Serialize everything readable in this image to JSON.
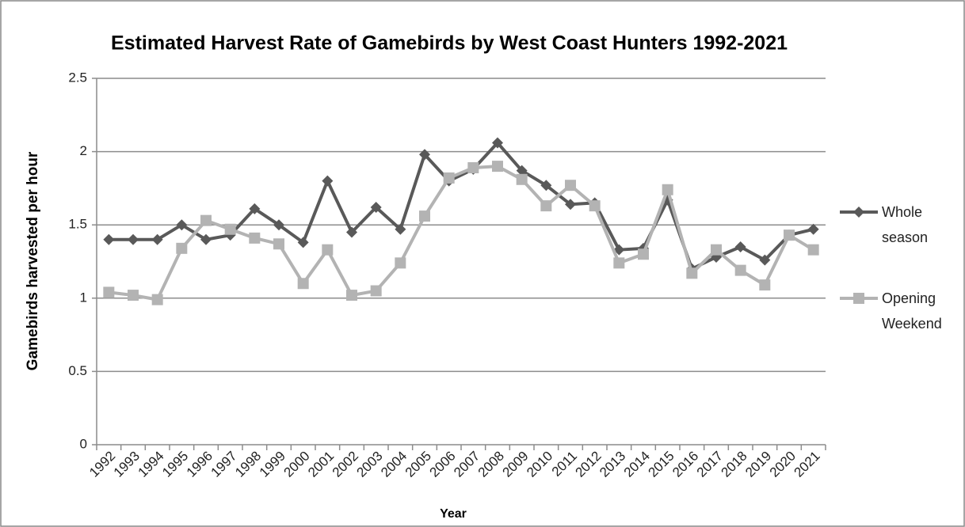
{
  "chart_data": {
    "type": "line",
    "title": "Estimated Harvest Rate of Gamebirds by West Coast Hunters 1992-2021",
    "x_label": "Year",
    "y_label": "Gamebirds harvested per hour",
    "categories": [
      "1992",
      "1993",
      "1994",
      "1995",
      "1996",
      "1997",
      "1998",
      "1999",
      "2000",
      "2001",
      "2002",
      "2003",
      "2004",
      "2005",
      "2006",
      "2007",
      "2008",
      "2009",
      "2010",
      "2011",
      "2012",
      "2013",
      "2014",
      "2015",
      "2016",
      "2017",
      "2018",
      "2019",
      "2020",
      "2021"
    ],
    "series": [
      {
        "name": "Whole season",
        "color": "#595959",
        "marker": "diamond",
        "values": [
          1.4,
          1.4,
          1.4,
          1.5,
          1.4,
          1.43,
          1.61,
          1.5,
          1.38,
          1.8,
          1.45,
          1.62,
          1.47,
          1.98,
          1.8,
          1.88,
          2.06,
          1.87,
          1.77,
          1.64,
          1.65,
          1.33,
          1.34,
          1.67,
          1.2,
          1.28,
          1.35,
          1.26,
          1.43,
          1.47
        ]
      },
      {
        "name": "Opening Weekend",
        "color": "#b3b3b3",
        "marker": "square",
        "values": [
          1.04,
          1.02,
          0.99,
          1.34,
          1.53,
          1.47,
          1.41,
          1.37,
          1.1,
          1.33,
          1.02,
          1.05,
          1.24,
          1.56,
          1.82,
          1.89,
          1.9,
          1.81,
          1.63,
          1.77,
          1.63,
          1.24,
          1.3,
          1.74,
          1.17,
          1.33,
          1.19,
          1.09,
          1.43,
          1.33
        ]
      }
    ],
    "ylim": [
      0,
      2.5
    ],
    "yticks": [
      0,
      0.5,
      1,
      1.5,
      2,
      2.5
    ],
    "grid": true,
    "legend": "right"
  }
}
